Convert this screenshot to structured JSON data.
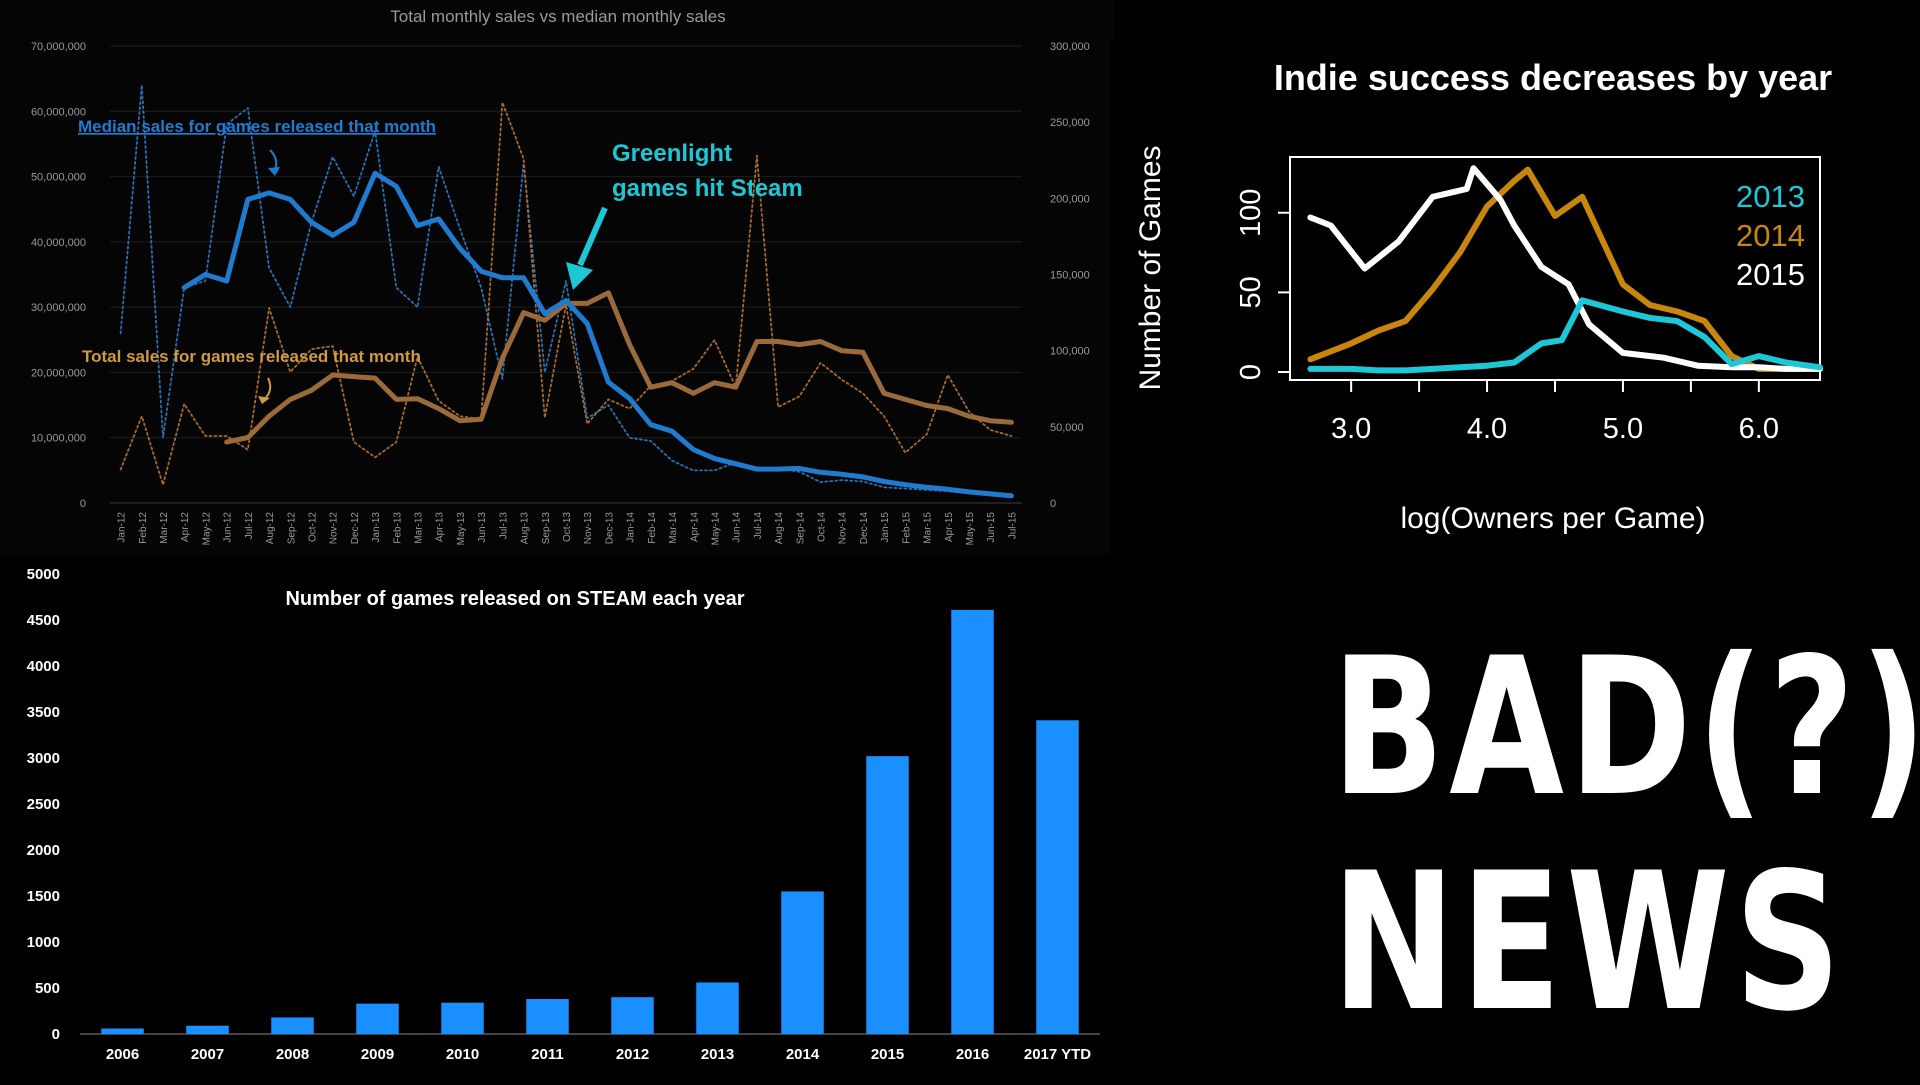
{
  "chart_data": [
    {
      "type": "line",
      "title": "Total monthly sales vs median monthly sales",
      "x": [
        "Jan-12",
        "Feb-12",
        "Mar-12",
        "Apr-12",
        "May-12",
        "Jun-12",
        "Jul-12",
        "Aug-12",
        "Sep-12",
        "Oct-12",
        "Nov-12",
        "Dec-12",
        "Jan-13",
        "Feb-13",
        "Mar-13",
        "Apr-13",
        "May-13",
        "Jun-13",
        "Jul-13",
        "Aug-13",
        "Sep-13",
        "Oct-13",
        "Nov-13",
        "Dec-13",
        "Jan-14",
        "Feb-14",
        "Mar-14",
        "Apr-14",
        "May-14",
        "Jun-14",
        "Jul-14",
        "Aug-14",
        "Sep-14",
        "Oct-14",
        "Nov-14",
        "Dec-14",
        "Jan-15",
        "Feb-15",
        "Mar-15",
        "Apr-15",
        "May-15",
        "Jun-15",
        "Jul-15"
      ],
      "y_left_ticks": [
        "0",
        "10,000,000",
        "20,000,000",
        "30,000,000",
        "40,000,000",
        "50,000,000",
        "60,000,000",
        "70,000,000"
      ],
      "y_right_ticks": [
        "0",
        "50,000",
        "100,000",
        "150,000",
        "200,000",
        "250,000",
        "300,000"
      ],
      "ylim_left": [
        0,
        70000000
      ],
      "ylim_right": [
        0,
        300000
      ],
      "series": [
        {
          "name": "Median sales for games released that month",
          "axis": "left",
          "style": "thick",
          "color": "#1f7bd0",
          "values": [
            null,
            null,
            null,
            33000000,
            35000000,
            34000000,
            46500000,
            47500000,
            46500000,
            43000000,
            41000000,
            43000000,
            50500000,
            48500000,
            42500000,
            43500000,
            39000000,
            35500000,
            34500000,
            34500000,
            29000000,
            31000000,
            27500000,
            18500000,
            16000000,
            12000000,
            11000000,
            8200000,
            6800000,
            6000000,
            5200000,
            5200000,
            5300000,
            4700000,
            4400000,
            4000000,
            3300000,
            2800000,
            2400000,
            2100000,
            1700000,
            1400000,
            1100000
          ]
        },
        {
          "name": "Total sales for games released that month",
          "axis": "right",
          "style": "thick",
          "color": "#9a6a3a",
          "values": [
            null,
            null,
            null,
            null,
            null,
            40000,
            43000,
            57000,
            68000,
            74000,
            84000,
            83000,
            82000,
            68000,
            68500,
            62000,
            54000,
            55000,
            95000,
            125000,
            120000,
            131000,
            131000,
            138000,
            104000,
            76000,
            79000,
            72000,
            79000,
            76000,
            106000,
            106000,
            104000,
            106000,
            100000,
            99000,
            72000,
            68000,
            64000,
            62000,
            57000,
            54000,
            53000
          ]
        },
        {
          "name": "",
          "axis": "left",
          "style": "dotted",
          "color": "#2a6fb0",
          "values": [
            26000000,
            64000000,
            10000000,
            33000000,
            34000000,
            58000000,
            60500000,
            36000000,
            30000000,
            43000000,
            53000000,
            47000000,
            57000000,
            33000000,
            30000000,
            51500000,
            42000000,
            33000000,
            19000000,
            52000000,
            20000000,
            34000000,
            13000000,
            15000000,
            10000000,
            9500000,
            6500000,
            5000000,
            5000000,
            6200000,
            5400000,
            5300000,
            4800000,
            3200000,
            3500000,
            3300000,
            2400000,
            2200000,
            2000000,
            1800000,
            1500000,
            1200000,
            900000
          ]
        },
        {
          "name": "",
          "axis": "right",
          "style": "dotted",
          "color": "#a66a2a",
          "values": [
            22000,
            57000,
            12000,
            65000,
            44000,
            44000,
            35000,
            128000,
            86000,
            101000,
            103000,
            40000,
            30000,
            40000,
            96000,
            67000,
            57000,
            55000,
            263000,
            226000,
            56000,
            130000,
            52000,
            68000,
            62000,
            77000,
            80000,
            88000,
            107000,
            76000,
            228000,
            63000,
            70000,
            92000,
            81000,
            72000,
            57000,
            33000,
            45000,
            84000,
            60000,
            48000,
            44000
          ]
        }
      ],
      "annotations": {
        "median_label": "Median sales for games released that month",
        "total_label": "Total sales for games released that month",
        "greenlight_line1": "Greenlight",
        "greenlight_line2": "games hit Steam"
      },
      "grid": true
    },
    {
      "type": "line",
      "title": "Indie success decreases by year",
      "xlabel": "log(Owners per Game)",
      "ylabel": "Number of Games",
      "x_ticks": [
        "3.0",
        "4.0",
        "5.0",
        "6.0"
      ],
      "y_ticks": [
        "0",
        "50",
        "100"
      ],
      "xlim": [
        2.55,
        6.45
      ],
      "ylim": [
        -5,
        135
      ],
      "grid": false,
      "series": [
        {
          "name": "2013",
          "color": "#1cc7d6",
          "x": [
            2.7,
            3.0,
            3.2,
            3.4,
            3.6,
            3.8,
            4.0,
            4.2,
            4.4,
            4.55,
            4.7,
            5.0,
            5.2,
            5.4,
            5.6,
            5.8,
            6.0,
            6.2,
            6.45
          ],
          "values": [
            2,
            2,
            1,
            1,
            2,
            3,
            4,
            6,
            18,
            20,
            45,
            38,
            34,
            32,
            22,
            5,
            10,
            6,
            3
          ]
        },
        {
          "name": "2014",
          "color": "#c8860d",
          "x": [
            2.7,
            3.0,
            3.2,
            3.4,
            3.6,
            3.8,
            4.0,
            4.2,
            4.3,
            4.5,
            4.7,
            5.0,
            5.2,
            5.4,
            5.6,
            5.8,
            6.0,
            6.2,
            6.45
          ],
          "values": [
            8,
            18,
            26,
            32,
            52,
            75,
            104,
            120,
            127,
            98,
            110,
            55,
            42,
            38,
            32,
            10,
            2,
            2,
            2
          ]
        },
        {
          "name": "2015",
          "color": "#ffffff",
          "x": [
            2.7,
            2.85,
            3.1,
            3.35,
            3.6,
            3.85,
            3.9,
            4.1,
            4.2,
            4.4,
            4.6,
            4.75,
            5.0,
            5.3,
            5.55,
            5.8,
            6.0,
            6.2,
            6.45
          ],
          "values": [
            97,
            92,
            65,
            82,
            110,
            115,
            128,
            108,
            92,
            66,
            55,
            30,
            12,
            9,
            4,
            3,
            3,
            2,
            2
          ]
        }
      ]
    },
    {
      "type": "bar",
      "title": "Number of games released on STEAM each year",
      "categories": [
        "2006",
        "2007",
        "2008",
        "2009",
        "2010",
        "2011",
        "2012",
        "2013",
        "2014",
        "2015",
        "2016",
        "2017 YTD"
      ],
      "values": [
        60,
        90,
        180,
        330,
        340,
        380,
        400,
        560,
        1550,
        3020,
        4610,
        3410
      ],
      "y_ticks": [
        "0",
        "500",
        "1000",
        "1500",
        "2000",
        "2500",
        "3000",
        "3500",
        "4000",
        "4500",
        "5000"
      ],
      "ylim": [
        0,
        5000
      ],
      "color": "#1a8fff"
    }
  ],
  "headline": {
    "line1": "BAD(?)",
    "line2": "NEWS"
  }
}
